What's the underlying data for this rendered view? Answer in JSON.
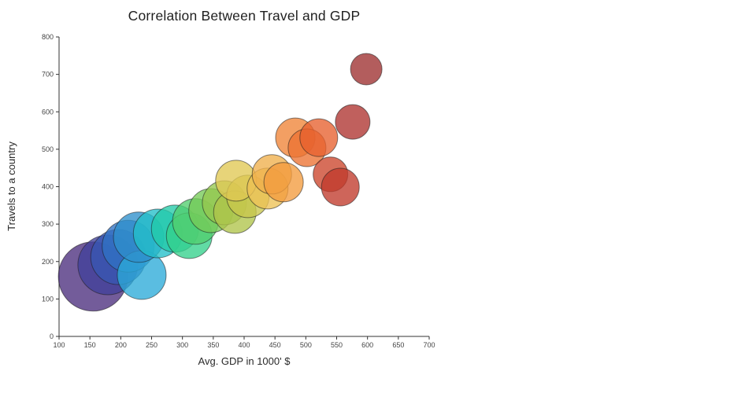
{
  "chart_data": {
    "type": "scatter",
    "title": "Correlation Between Travel and GDP",
    "xlabel": "Avg. GDP in 1000' $",
    "ylabel": "Travels to a country",
    "xlim": [
      100,
      700
    ],
    "ylim": [
      0,
      800
    ],
    "xticks": [
      100,
      150,
      200,
      250,
      300,
      350,
      400,
      450,
      500,
      550,
      600,
      650,
      700
    ],
    "yticks": [
      0,
      100,
      200,
      300,
      400,
      500,
      600,
      700,
      800
    ],
    "grid": false,
    "legend": false,
    "marker_opacity": 0.78,
    "points": [
      {
        "x": 155,
        "y": 160,
        "r": 44,
        "color": "#4B2E7E"
      },
      {
        "x": 179,
        "y": 191,
        "r": 38,
        "color": "#41409A"
      },
      {
        "x": 196,
        "y": 212,
        "r": 35,
        "color": "#3857B2"
      },
      {
        "x": 212,
        "y": 241,
        "r": 33,
        "color": "#2F72C4"
      },
      {
        "x": 234,
        "y": 164,
        "r": 31,
        "color": "#2BAAD8"
      },
      {
        "x": 229,
        "y": 265,
        "r": 32,
        "color": "#2E8FCC"
      },
      {
        "x": 260,
        "y": 275,
        "r": 31,
        "color": "#23BFC9"
      },
      {
        "x": 288,
        "y": 288,
        "r": 30,
        "color": "#22CBA8"
      },
      {
        "x": 311,
        "y": 269,
        "r": 29,
        "color": "#35D18C"
      },
      {
        "x": 321,
        "y": 307,
        "r": 29,
        "color": "#52CE6E"
      },
      {
        "x": 346,
        "y": 336,
        "r": 28,
        "color": "#76CB57"
      },
      {
        "x": 368,
        "y": 357,
        "r": 28,
        "color": "#96C84E"
      },
      {
        "x": 385,
        "y": 332,
        "r": 27,
        "color": "#AFC44A"
      },
      {
        "x": 406,
        "y": 374,
        "r": 27,
        "color": "#C9C64B"
      },
      {
        "x": 387,
        "y": 416,
        "r": 26,
        "color": "#E0C853"
      },
      {
        "x": 438,
        "y": 395,
        "r": 26,
        "color": "#EDC254"
      },
      {
        "x": 445,
        "y": 433,
        "r": 25,
        "color": "#F0B04B"
      },
      {
        "x": 464,
        "y": 412,
        "r": 25,
        "color": "#F29B3E"
      },
      {
        "x": 483,
        "y": 531,
        "r": 25,
        "color": "#F08437"
      },
      {
        "x": 502,
        "y": 504,
        "r": 24,
        "color": "#EC7232"
      },
      {
        "x": 521,
        "y": 531,
        "r": 24,
        "color": "#E7602E"
      },
      {
        "x": 540,
        "y": 433,
        "r": 22,
        "color": "#CC452C"
      },
      {
        "x": 556,
        "y": 399,
        "r": 24,
        "color": "#C03A2B"
      },
      {
        "x": 576,
        "y": 573,
        "r": 22,
        "color": "#AE3330"
      },
      {
        "x": 598,
        "y": 714,
        "r": 20,
        "color": "#9E2F2F"
      }
    ]
  }
}
